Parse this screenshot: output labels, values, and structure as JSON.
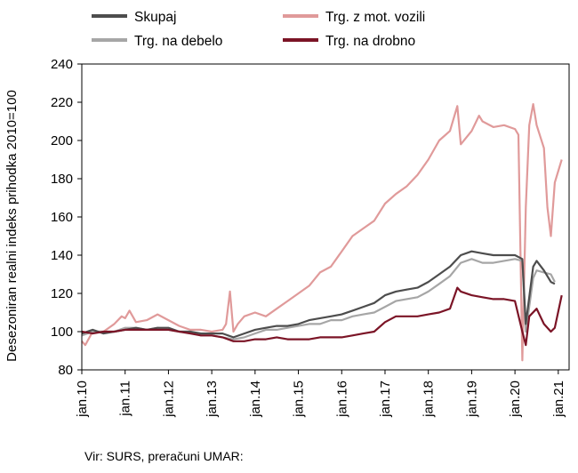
{
  "chart_data": {
    "type": "line",
    "title": "",
    "xlabel": "",
    "ylabel": "Desezoniran realni indeks prihodka 2010=100",
    "ylim": [
      80,
      240
    ],
    "yticks": [
      80,
      100,
      120,
      140,
      160,
      180,
      200,
      220,
      240
    ],
    "xlim": [
      2010,
      2021.25
    ],
    "xtick_labels": [
      "jan.10",
      "jan.11",
      "jan.12",
      "jan.13",
      "jan.14",
      "jan.15",
      "jan.16",
      "jan.17",
      "jan.18",
      "jan.19",
      "jan.20",
      "jan.21"
    ],
    "xtick_values": [
      2010,
      2011,
      2012,
      2013,
      2014,
      2015,
      2016,
      2017,
      2018,
      2019,
      2020,
      2021
    ],
    "legend_position": "top",
    "series": [
      {
        "name": "Skupaj",
        "color": "#4d4d4d",
        "points": [
          [
            2010,
            99
          ],
          [
            2010.25,
            101
          ],
          [
            2010.5,
            99
          ],
          [
            2010.75,
            100
          ],
          [
            2011,
            101
          ],
          [
            2011.25,
            102
          ],
          [
            2011.5,
            101
          ],
          [
            2011.75,
            102
          ],
          [
            2012,
            102
          ],
          [
            2012.25,
            100
          ],
          [
            2012.5,
            100
          ],
          [
            2012.75,
            99
          ],
          [
            2013,
            99
          ],
          [
            2013.25,
            99
          ],
          [
            2013.5,
            97
          ],
          [
            2013.75,
            99
          ],
          [
            2014,
            101
          ],
          [
            2014.25,
            102
          ],
          [
            2014.5,
            103
          ],
          [
            2014.75,
            103
          ],
          [
            2015,
            104
          ],
          [
            2015.25,
            106
          ],
          [
            2015.5,
            107
          ],
          [
            2015.75,
            108
          ],
          [
            2016,
            109
          ],
          [
            2016.25,
            111
          ],
          [
            2016.5,
            113
          ],
          [
            2016.75,
            115
          ],
          [
            2017,
            119
          ],
          [
            2017.25,
            121
          ],
          [
            2017.5,
            122
          ],
          [
            2017.75,
            123
          ],
          [
            2018,
            126
          ],
          [
            2018.25,
            130
          ],
          [
            2018.5,
            134
          ],
          [
            2018.75,
            140
          ],
          [
            2019,
            142
          ],
          [
            2019.25,
            141
          ],
          [
            2019.5,
            140
          ],
          [
            2019.75,
            140
          ],
          [
            2020,
            140
          ],
          [
            2020.17,
            138
          ],
          [
            2020.25,
            104
          ],
          [
            2020.42,
            134
          ],
          [
            2020.5,
            137
          ],
          [
            2020.67,
            132
          ],
          [
            2020.83,
            126
          ],
          [
            2020.92,
            125
          ]
        ]
      },
      {
        "name": "Trg. z mot. vozili",
        "color": "#e09a9a",
        "points": [
          [
            2010,
            95
          ],
          [
            2010.08,
            93
          ],
          [
            2010.25,
            100
          ],
          [
            2010.5,
            100
          ],
          [
            2010.75,
            104
          ],
          [
            2010.92,
            108
          ],
          [
            2011,
            107
          ],
          [
            2011.1,
            111
          ],
          [
            2011.25,
            105
          ],
          [
            2011.5,
            106
          ],
          [
            2011.75,
            109
          ],
          [
            2012,
            106
          ],
          [
            2012.25,
            103
          ],
          [
            2012.5,
            101
          ],
          [
            2012.75,
            101
          ],
          [
            2013,
            100
          ],
          [
            2013.25,
            101
          ],
          [
            2013.33,
            104
          ],
          [
            2013.42,
            121
          ],
          [
            2013.5,
            100
          ],
          [
            2013.6,
            104
          ],
          [
            2013.75,
            108
          ],
          [
            2014,
            110
          ],
          [
            2014.25,
            108
          ],
          [
            2014.5,
            112
          ],
          [
            2014.75,
            116
          ],
          [
            2015,
            120
          ],
          [
            2015.25,
            124
          ],
          [
            2015.5,
            131
          ],
          [
            2015.75,
            134
          ],
          [
            2016,
            142
          ],
          [
            2016.25,
            150
          ],
          [
            2016.5,
            154
          ],
          [
            2016.75,
            158
          ],
          [
            2017,
            167
          ],
          [
            2017.25,
            172
          ],
          [
            2017.5,
            176
          ],
          [
            2017.75,
            182
          ],
          [
            2018,
            190
          ],
          [
            2018.25,
            200
          ],
          [
            2018.5,
            205
          ],
          [
            2018.67,
            218
          ],
          [
            2018.75,
            198
          ],
          [
            2019,
            205
          ],
          [
            2019.17,
            213
          ],
          [
            2019.25,
            210
          ],
          [
            2019.5,
            207
          ],
          [
            2019.75,
            208
          ],
          [
            2020,
            206
          ],
          [
            2020.08,
            203
          ],
          [
            2020.17,
            85
          ],
          [
            2020.25,
            165
          ],
          [
            2020.33,
            208
          ],
          [
            2020.42,
            219
          ],
          [
            2020.5,
            208
          ],
          [
            2020.67,
            196
          ],
          [
            2020.75,
            165
          ],
          [
            2020.83,
            150
          ],
          [
            2020.92,
            178
          ],
          [
            2021.08,
            190
          ]
        ]
      },
      {
        "name": "Trg. na debelo",
        "color": "#a6a6a6",
        "points": [
          [
            2010,
            98
          ],
          [
            2010.25,
            100
          ],
          [
            2010.5,
            100
          ],
          [
            2010.75,
            100
          ],
          [
            2011,
            102
          ],
          [
            2011.25,
            102
          ],
          [
            2011.5,
            101
          ],
          [
            2011.75,
            102
          ],
          [
            2012,
            101
          ],
          [
            2012.25,
            100
          ],
          [
            2012.5,
            100
          ],
          [
            2012.75,
            98
          ],
          [
            2013,
            98
          ],
          [
            2013.25,
            97
          ],
          [
            2013.5,
            96
          ],
          [
            2013.75,
            97
          ],
          [
            2014,
            99
          ],
          [
            2014.25,
            101
          ],
          [
            2014.5,
            101
          ],
          [
            2014.75,
            102
          ],
          [
            2015,
            103
          ],
          [
            2015.25,
            104
          ],
          [
            2015.5,
            104
          ],
          [
            2015.75,
            106
          ],
          [
            2016,
            106
          ],
          [
            2016.25,
            108
          ],
          [
            2016.5,
            109
          ],
          [
            2016.75,
            110
          ],
          [
            2017,
            113
          ],
          [
            2017.25,
            116
          ],
          [
            2017.5,
            117
          ],
          [
            2017.75,
            118
          ],
          [
            2018,
            121
          ],
          [
            2018.25,
            125
          ],
          [
            2018.5,
            129
          ],
          [
            2018.75,
            136
          ],
          [
            2019,
            138
          ],
          [
            2019.25,
            136
          ],
          [
            2019.5,
            136
          ],
          [
            2019.75,
            137
          ],
          [
            2020,
            138
          ],
          [
            2020.17,
            137
          ],
          [
            2020.25,
            100
          ],
          [
            2020.42,
            128
          ],
          [
            2020.5,
            132
          ],
          [
            2020.67,
            131
          ],
          [
            2020.83,
            130
          ],
          [
            2020.92,
            126
          ]
        ]
      },
      {
        "name": "Trg. na drobno",
        "color": "#7b1426",
        "points": [
          [
            2010,
            100
          ],
          [
            2010.25,
            99
          ],
          [
            2010.5,
            100
          ],
          [
            2010.75,
            100
          ],
          [
            2011,
            101
          ],
          [
            2011.25,
            101
          ],
          [
            2011.5,
            101
          ],
          [
            2011.75,
            101
          ],
          [
            2012,
            101
          ],
          [
            2012.25,
            100
          ],
          [
            2012.5,
            99
          ],
          [
            2012.75,
            98
          ],
          [
            2013,
            98
          ],
          [
            2013.25,
            97
          ],
          [
            2013.5,
            95
          ],
          [
            2013.75,
            95
          ],
          [
            2014,
            96
          ],
          [
            2014.25,
            96
          ],
          [
            2014.5,
            97
          ],
          [
            2014.75,
            96
          ],
          [
            2015,
            96
          ],
          [
            2015.25,
            96
          ],
          [
            2015.5,
            97
          ],
          [
            2015.75,
            97
          ],
          [
            2016,
            97
          ],
          [
            2016.25,
            98
          ],
          [
            2016.5,
            99
          ],
          [
            2016.75,
            100
          ],
          [
            2017,
            105
          ],
          [
            2017.25,
            108
          ],
          [
            2017.5,
            108
          ],
          [
            2017.75,
            108
          ],
          [
            2018,
            109
          ],
          [
            2018.25,
            110
          ],
          [
            2018.5,
            112
          ],
          [
            2018.67,
            123
          ],
          [
            2018.75,
            121
          ],
          [
            2019,
            119
          ],
          [
            2019.25,
            118
          ],
          [
            2019.5,
            117
          ],
          [
            2019.75,
            117
          ],
          [
            2020,
            116
          ],
          [
            2020.17,
            100
          ],
          [
            2020.25,
            93
          ],
          [
            2020.33,
            108
          ],
          [
            2020.5,
            112
          ],
          [
            2020.67,
            104
          ],
          [
            2020.83,
            100
          ],
          [
            2020.92,
            102
          ],
          [
            2021.08,
            119
          ]
        ]
      }
    ]
  },
  "source": "Vir: SURS, preračuni UMAR:"
}
